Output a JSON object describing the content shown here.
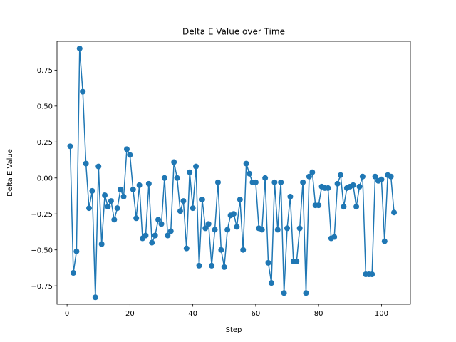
{
  "chart_data": {
    "type": "line",
    "title": "Delta E Value over Time",
    "xlabel": "Step",
    "ylabel": "Delta E Value",
    "xlim": [
      -3.2,
      109.2
    ],
    "ylim": [
      -0.878,
      0.95
    ],
    "xticks": [
      0,
      20,
      40,
      60,
      80,
      100
    ],
    "yticks": [
      -0.75,
      -0.5,
      -0.25,
      0.0,
      0.25,
      0.5,
      0.75
    ],
    "ytick_labels": [
      "−0.75",
      "−0.50",
      "−0.25",
      "0.00",
      "0.25",
      "0.50",
      "0.75"
    ],
    "grid": false,
    "legend": "none",
    "series": [
      {
        "color": "#1f77b4",
        "marker": "circle",
        "x": [
          1,
          2,
          3,
          4,
          5,
          6,
          7,
          8,
          9,
          10,
          11,
          12,
          13,
          14,
          15,
          16,
          17,
          18,
          19,
          20,
          21,
          22,
          23,
          24,
          25,
          26,
          27,
          28,
          29,
          30,
          31,
          32,
          33,
          34,
          35,
          36,
          37,
          38,
          39,
          40,
          41,
          42,
          43,
          44,
          45,
          46,
          47,
          48,
          49,
          50,
          51,
          52,
          53,
          54,
          55,
          56,
          57,
          58,
          59,
          60,
          61,
          62,
          63,
          64,
          65,
          66,
          67,
          68,
          69,
          70,
          71,
          72,
          73,
          74,
          75,
          76,
          77,
          78,
          79,
          80,
          81,
          82,
          83,
          84,
          85,
          86,
          87,
          88,
          89,
          90,
          91,
          92,
          93,
          94,
          95,
          96,
          97,
          98,
          99,
          100,
          101,
          102,
          103,
          104
        ],
        "y": [
          0.22,
          -0.66,
          -0.51,
          0.9,
          0.6,
          0.1,
          -0.21,
          -0.09,
          -0.83,
          0.08,
          -0.46,
          -0.12,
          -0.2,
          -0.16,
          -0.29,
          -0.21,
          -0.08,
          -0.13,
          0.2,
          0.16,
          -0.08,
          -0.28,
          -0.05,
          -0.42,
          -0.4,
          -0.04,
          -0.45,
          -0.4,
          -0.29,
          -0.32,
          0.0,
          -0.4,
          -0.37,
          0.11,
          0.0,
          -0.23,
          -0.16,
          -0.49,
          0.04,
          -0.21,
          0.08,
          -0.61,
          -0.15,
          -0.35,
          -0.32,
          -0.61,
          -0.36,
          -0.03,
          -0.5,
          -0.62,
          -0.36,
          -0.26,
          -0.25,
          -0.34,
          -0.15,
          -0.5,
          0.1,
          0.03,
          -0.03,
          -0.03,
          -0.35,
          -0.36,
          0.0,
          -0.59,
          -0.73,
          -0.03,
          -0.36,
          -0.03,
          -0.8,
          -0.35,
          -0.13,
          -0.58,
          -0.58,
          -0.35,
          -0.03,
          -0.8,
          0.01,
          0.04,
          -0.19,
          -0.19,
          -0.06,
          -0.07,
          -0.07,
          -0.42,
          -0.41,
          -0.04,
          0.02,
          -0.2,
          -0.07,
          -0.06,
          -0.05,
          -0.2,
          -0.06,
          0.01,
          -0.67,
          -0.67,
          -0.67,
          0.01,
          -0.02,
          -0.01,
          -0.44,
          0.02,
          0.01,
          -0.24
        ]
      }
    ]
  }
}
